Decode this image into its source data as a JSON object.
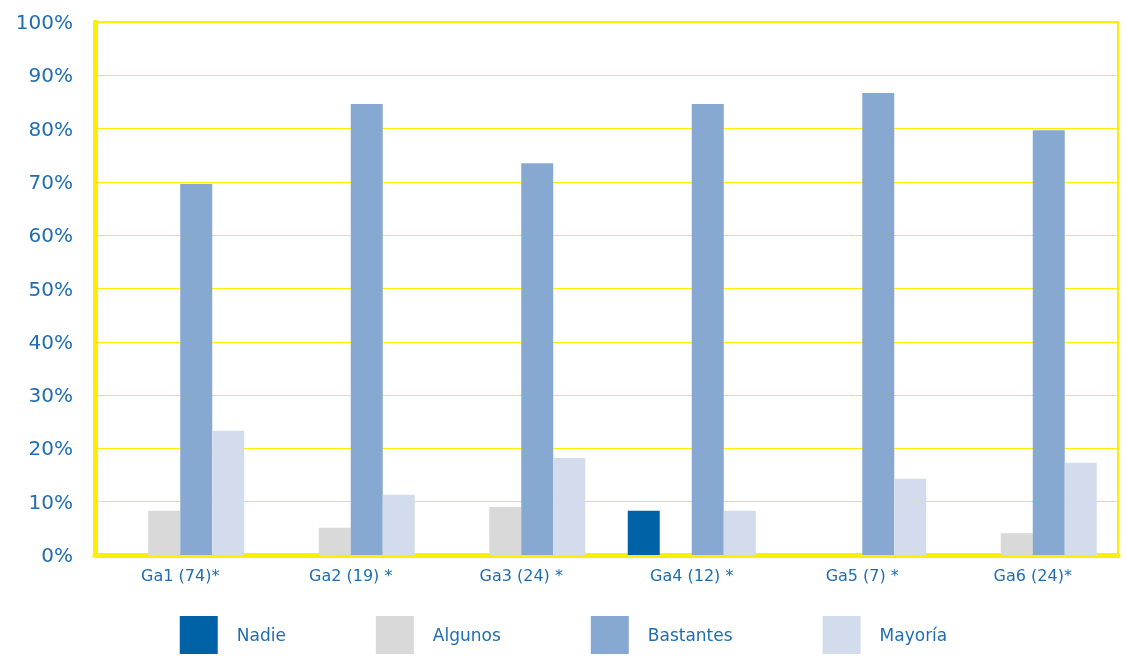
{
  "chart_data": {
    "type": "bar",
    "categories": [
      "Ga1 (74)*",
      "Ga2 (19) *",
      "Ga3 (24) *",
      "Ga4 (12) *",
      "Ga5 (7) *",
      "Ga6 (24)*"
    ],
    "series": [
      {
        "name": "Nadie",
        "color": "#0062a6",
        "values": [
          0,
          0,
          0,
          8.3,
          0,
          0
        ]
      },
      {
        "name": "Algunos",
        "color": "#d9d9d9",
        "values": [
          8.3,
          5.1,
          9.0,
          0,
          0,
          4.1
        ]
      },
      {
        "name": "Bastantes",
        "color": "#87a8d0",
        "values": [
          69.6,
          84.6,
          73.5,
          84.6,
          86.7,
          79.7
        ]
      },
      {
        "name": "Mayoría",
        "color": "#d3dcec",
        "values": [
          23.3,
          11.3,
          18.2,
          8.3,
          14.3,
          17.3
        ]
      }
    ],
    "ylim": [
      0,
      100
    ],
    "yticks": [
      {
        "value": 0,
        "label": "0%"
      },
      {
        "value": 10,
        "label": "10%"
      },
      {
        "value": 20,
        "label": "20%"
      },
      {
        "value": 30,
        "label": "30%"
      },
      {
        "value": 40,
        "label": "40%"
      },
      {
        "value": 50,
        "label": "50%"
      },
      {
        "value": 60,
        "label": "60%"
      },
      {
        "value": 70,
        "label": "70%"
      },
      {
        "value": 80,
        "label": "80%"
      },
      {
        "value": 90,
        "label": "90%"
      },
      {
        "value": 100,
        "label": "100%"
      }
    ],
    "grid": "y",
    "legend": "bottom"
  }
}
